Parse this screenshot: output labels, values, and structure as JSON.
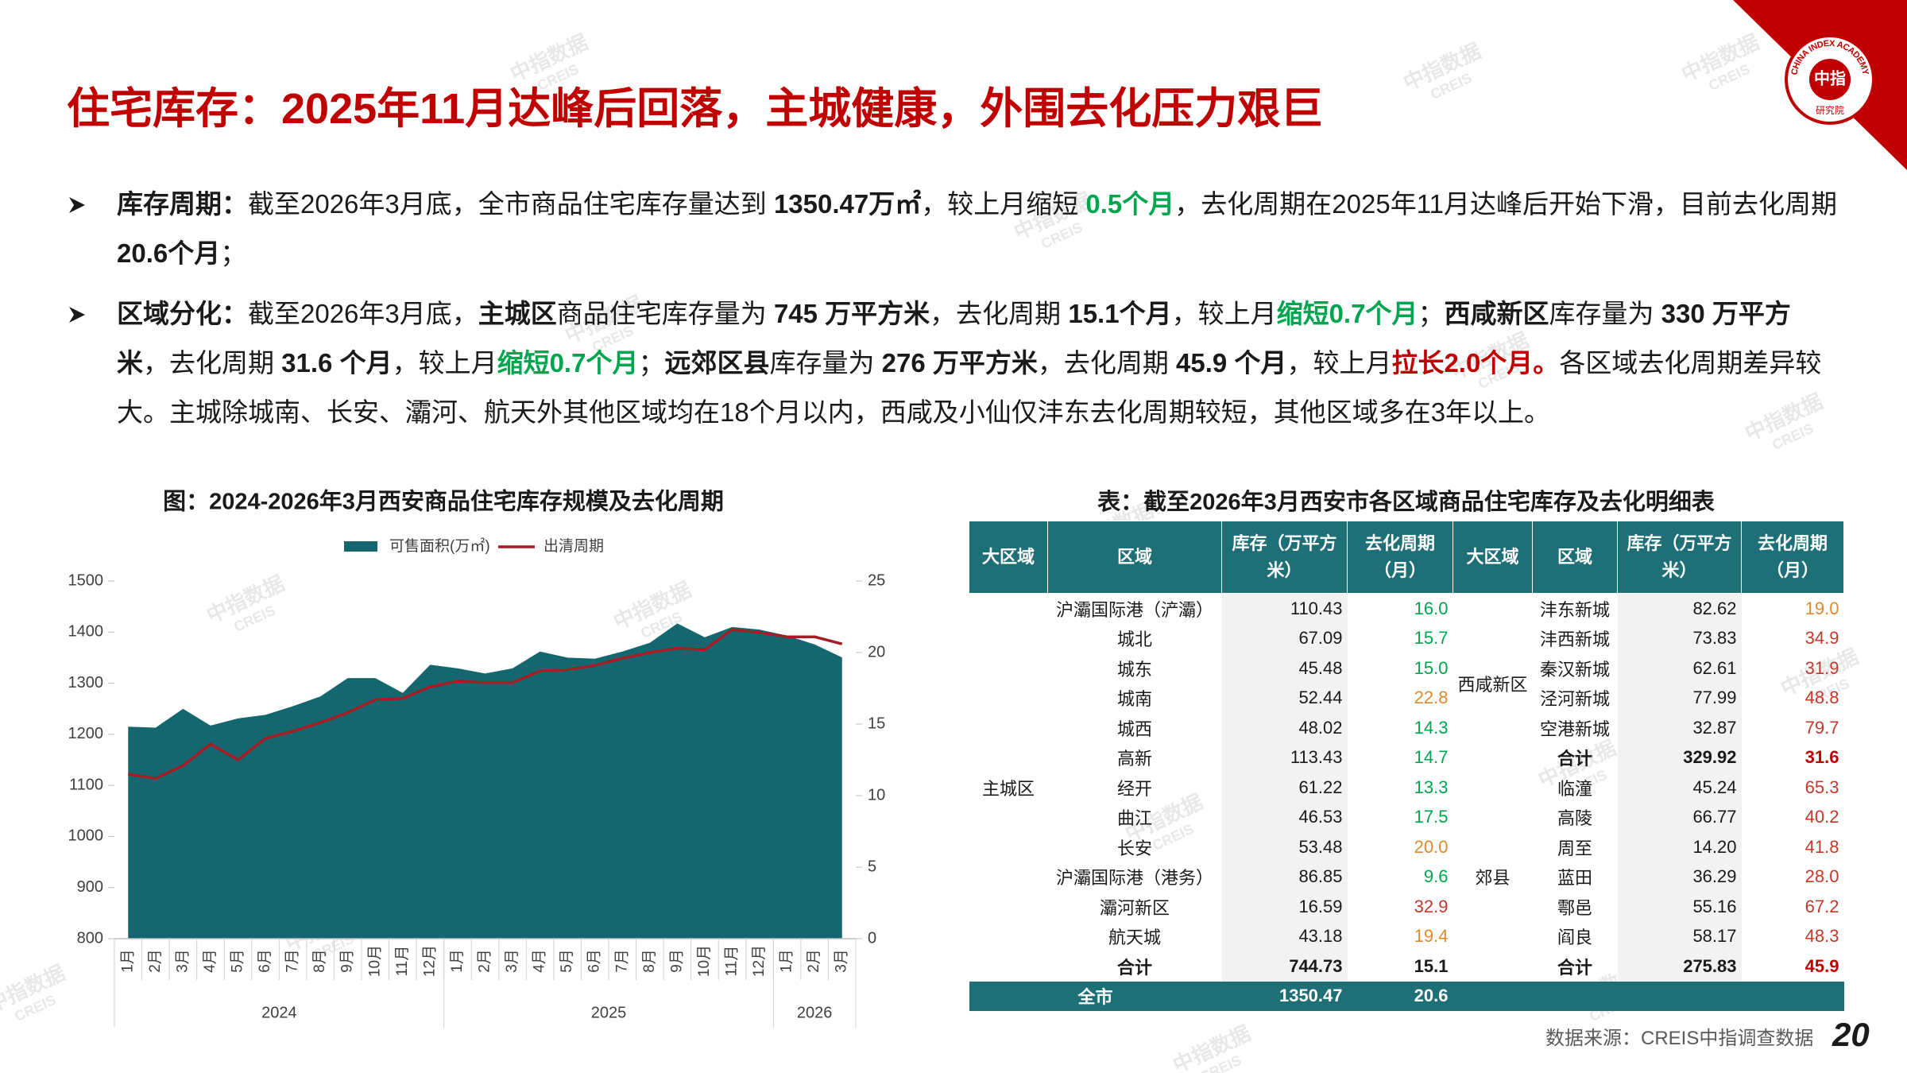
{
  "title": "住宅库存：2025年11月达峰后回落，主城健康，外围去化压力艰巨",
  "watermark": {
    "line1": "中指数据",
    "line2": "CREIS"
  },
  "logo": {
    "ring": "CHINA INDEX ACADEMY",
    "center": "中指",
    "bottom": "研究院"
  },
  "bullets": [
    {
      "segments": [
        {
          "text": "库存周期：",
          "style": "bold"
        },
        {
          "text": "截至2026年3月底，全市商品住宅库存量达到 ",
          "style": "normal"
        },
        {
          "text": "1350.47万㎡",
          "style": "bold"
        },
        {
          "text": "，较上月缩短 ",
          "style": "normal"
        },
        {
          "text": "0.5个月",
          "style": "green"
        },
        {
          "text": "，去化周期在2025年11月达峰后开始下滑，目前去化周期 ",
          "style": "normal"
        },
        {
          "text": "20.6个月",
          "style": "bold"
        },
        {
          "text": "；",
          "style": "normal"
        }
      ]
    },
    {
      "segments": [
        {
          "text": "区域分化：",
          "style": "bold"
        },
        {
          "text": "截至2026年3月底，",
          "style": "normal"
        },
        {
          "text": "主城区",
          "style": "bold"
        },
        {
          "text": "商品住宅库存量为 ",
          "style": "normal"
        },
        {
          "text": "745 万平方米",
          "style": "bold"
        },
        {
          "text": "，去化周期 ",
          "style": "normal"
        },
        {
          "text": "15.1个月",
          "style": "bold"
        },
        {
          "text": "，较上月",
          "style": "normal"
        },
        {
          "text": "缩短0.7个月",
          "style": "green"
        },
        {
          "text": "；",
          "style": "normal"
        },
        {
          "text": "西咸新区",
          "style": "bold"
        },
        {
          "text": "库存量为 ",
          "style": "normal"
        },
        {
          "text": "330 万平方米",
          "style": "bold"
        },
        {
          "text": "，去化周期 ",
          "style": "normal"
        },
        {
          "text": "31.6 个月",
          "style": "bold"
        },
        {
          "text": "，较上月",
          "style": "normal"
        },
        {
          "text": "缩短0.7个月",
          "style": "green"
        },
        {
          "text": "；",
          "style": "normal"
        },
        {
          "text": "远郊区县",
          "style": "bold"
        },
        {
          "text": "库存量为 ",
          "style": "normal"
        },
        {
          "text": "276 万平方米",
          "style": "bold"
        },
        {
          "text": "，去化周期 ",
          "style": "normal"
        },
        {
          "text": "45.9 个月",
          "style": "bold"
        },
        {
          "text": "，较上月",
          "style": "normal"
        },
        {
          "text": "拉长2.0个月。",
          "style": "red"
        },
        {
          "text": "各区域去化周期差异较大。主城除城南、长安、灞河、航天外其他区域均在18个月以内，西咸及小仙仅沣东去化周期较短，其他区域多在3年以上。",
          "style": "normal"
        }
      ]
    }
  ],
  "chart_data": {
    "type": "combo",
    "title": "图：2024-2026年3月西安商品住宅库存规模及去化周期",
    "groups": [
      {
        "label": "2024",
        "categories": [
          "1月",
          "2月",
          "3月",
          "4月",
          "5月",
          "6月",
          "7月",
          "8月",
          "9月",
          "10月",
          "11月",
          "12月"
        ]
      },
      {
        "label": "2025",
        "categories": [
          "1月",
          "2月",
          "3月",
          "4月",
          "5月",
          "6月",
          "7月",
          "8月",
          "9月",
          "10月",
          "11月",
          "12月"
        ]
      },
      {
        "label": "2026",
        "categories": [
          "1月",
          "2月",
          "3月"
        ]
      }
    ],
    "series": [
      {
        "name": "可售面积(万㎡)",
        "type": "area",
        "color": "#14666f",
        "values": [
          1215,
          1213,
          1250,
          1217,
          1231,
          1238,
          1255,
          1274,
          1310,
          1310,
          1281,
          1336,
          1329,
          1319,
          1329,
          1362,
          1350,
          1348,
          1362,
          1379,
          1417,
          1390,
          1410,
          1405,
          1393,
          1376,
          1350.47
        ]
      },
      {
        "name": "出清周期",
        "type": "line",
        "axis": "y2",
        "color": "#a51c24",
        "values": [
          11.5,
          11.2,
          12.1,
          13.6,
          12.5,
          14.0,
          14.5,
          15.1,
          15.8,
          16.7,
          16.8,
          17.6,
          18.0,
          17.9,
          17.9,
          18.7,
          18.8,
          19.1,
          19.6,
          20.0,
          20.3,
          20.2,
          21.6,
          21.4,
          21.1,
          21.1,
          20.6
        ]
      }
    ],
    "ylim": [
      800,
      1500
    ],
    "yticks": [
      800,
      900,
      1000,
      1100,
      1200,
      1300,
      1400,
      1500
    ],
    "y2lim": [
      0,
      25
    ],
    "y2ticks": [
      0,
      5,
      10,
      15,
      20,
      25
    ],
    "legend": "top"
  },
  "table": {
    "title": "表：截至2026年3月西安市各区域商品住宅库存及去化明细表",
    "header": [
      "大区域",
      "区域",
      "库存（万平方米）",
      "去化周期（月）",
      "大区域",
      "区域",
      "库存（万平方米）",
      "去化周期（月）"
    ],
    "left_groups": [
      {
        "label": "主城区",
        "rows": [
          {
            "region": "沪灞国际港（浐灞）",
            "stock": "110.43",
            "cycle": "16.0",
            "color": "#00a54f"
          },
          {
            "region": "城北",
            "stock": "67.09",
            "cycle": "15.7",
            "color": "#00a54f"
          },
          {
            "region": "城东",
            "stock": "45.48",
            "cycle": "15.0",
            "color": "#00a54f"
          },
          {
            "region": "城南",
            "stock": "52.44",
            "cycle": "22.8",
            "color": "#e08a2c"
          },
          {
            "region": "城西",
            "stock": "48.02",
            "cycle": "14.3",
            "color": "#00a54f"
          },
          {
            "region": "高新",
            "stock": "113.43",
            "cycle": "14.7",
            "color": "#00a54f"
          },
          {
            "region": "经开",
            "stock": "61.22",
            "cycle": "13.3",
            "color": "#00a54f"
          },
          {
            "region": "曲江",
            "stock": "46.53",
            "cycle": "17.5",
            "color": "#00a54f"
          },
          {
            "region": "长安",
            "stock": "53.48",
            "cycle": "20.0",
            "color": "#e08a2c"
          },
          {
            "region": "沪灞国际港（港务）",
            "stock": "86.85",
            "cycle": "9.6",
            "color": "#00a54f"
          },
          {
            "region": "灞河新区",
            "stock": "16.59",
            "cycle": "32.9",
            "color": "#c0392b"
          },
          {
            "region": "航天城",
            "stock": "43.18",
            "cycle": "19.4",
            "color": "#e08a2c"
          },
          {
            "region": "合计",
            "stock": "744.73",
            "cycle": "15.1",
            "color": "#1a1a1a",
            "bold": true
          }
        ]
      }
    ],
    "right_groups": [
      {
        "label": "西咸新区",
        "rows": [
          {
            "region": "沣东新城",
            "stock": "82.62",
            "cycle": "19.0",
            "color": "#e08a2c"
          },
          {
            "region": "沣西新城",
            "stock": "73.83",
            "cycle": "34.9",
            "color": "#c0392b"
          },
          {
            "region": "秦汉新城",
            "stock": "62.61",
            "cycle": "31.9",
            "color": "#c0392b"
          },
          {
            "region": "泾河新城",
            "stock": "77.99",
            "cycle": "48.8",
            "color": "#c0392b"
          },
          {
            "region": "空港新城",
            "stock": "32.87",
            "cycle": "79.7",
            "color": "#c0392b"
          },
          {
            "region": "合计",
            "stock": "329.92",
            "cycle": "31.6",
            "color": "#c00000",
            "bold": true
          }
        ]
      },
      {
        "label": "郊县",
        "rows": [
          {
            "region": "临潼",
            "stock": "45.24",
            "cycle": "65.3",
            "color": "#c0392b"
          },
          {
            "region": "高陵",
            "stock": "66.77",
            "cycle": "40.2",
            "color": "#c0392b"
          },
          {
            "region": "周至",
            "stock": "14.20",
            "cycle": "41.8",
            "color": "#c0392b"
          },
          {
            "region": "蓝田",
            "stock": "36.29",
            "cycle": "28.0",
            "color": "#c0392b"
          },
          {
            "region": "鄠邑",
            "stock": "55.16",
            "cycle": "67.2",
            "color": "#c0392b"
          },
          {
            "region": "阎良",
            "stock": "58.17",
            "cycle": "48.3",
            "color": "#c0392b"
          },
          {
            "region": "合计",
            "stock": "275.83",
            "cycle": "45.9",
            "color": "#c00000",
            "bold": true
          }
        ]
      }
    ],
    "total": {
      "label": "全市",
      "stock": "1350.47",
      "cycle": "20.6"
    }
  },
  "source": "数据来源：CREIS中指调查数据",
  "page_number": "20"
}
